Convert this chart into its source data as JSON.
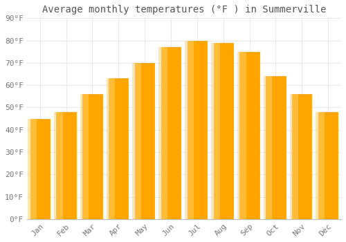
{
  "title": "Average monthly temperatures (°F ) in Summerville",
  "months": [
    "Jan",
    "Feb",
    "Mar",
    "Apr",
    "May",
    "Jun",
    "Jul",
    "Aug",
    "Sep",
    "Oct",
    "Nov",
    "Dec"
  ],
  "values": [
    45,
    48,
    56,
    63,
    70,
    77,
    80,
    79,
    75,
    64,
    56,
    48
  ],
  "bar_color_main": "#FFA500",
  "bar_color_light": "#FFD060",
  "bar_color_edge": "#E89000",
  "ylim": [
    0,
    90
  ],
  "yticks": [
    0,
    10,
    20,
    30,
    40,
    50,
    60,
    70,
    80,
    90
  ],
  "ytick_labels": [
    "0°F",
    "10°F",
    "20°F",
    "30°F",
    "40°F",
    "50°F",
    "60°F",
    "70°F",
    "80°F",
    "90°F"
  ],
  "background_color": "#FFFFFF",
  "plot_bg_color": "#FFFFFF",
  "grid_color": "#E8E8E8",
  "title_fontsize": 10,
  "tick_fontsize": 8,
  "bar_width": 0.75
}
